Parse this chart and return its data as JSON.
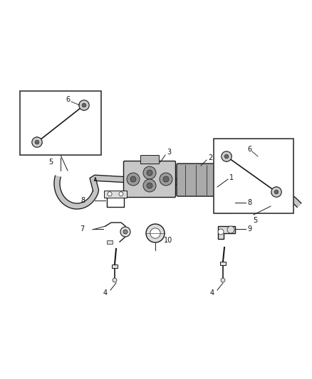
{
  "bg_color": "#ffffff",
  "line_color": "#1a1a1a",
  "figsize": [
    4.38,
    5.33
  ],
  "dpi": 100,
  "lw_bar": 2.2,
  "lw_part": 1.0,
  "lw_thin": 0.7,
  "label_fs": 7.0,
  "bar_color": "#1a1a1a",
  "part_fill": "#dddddd",
  "dark_fill": "#555555"
}
